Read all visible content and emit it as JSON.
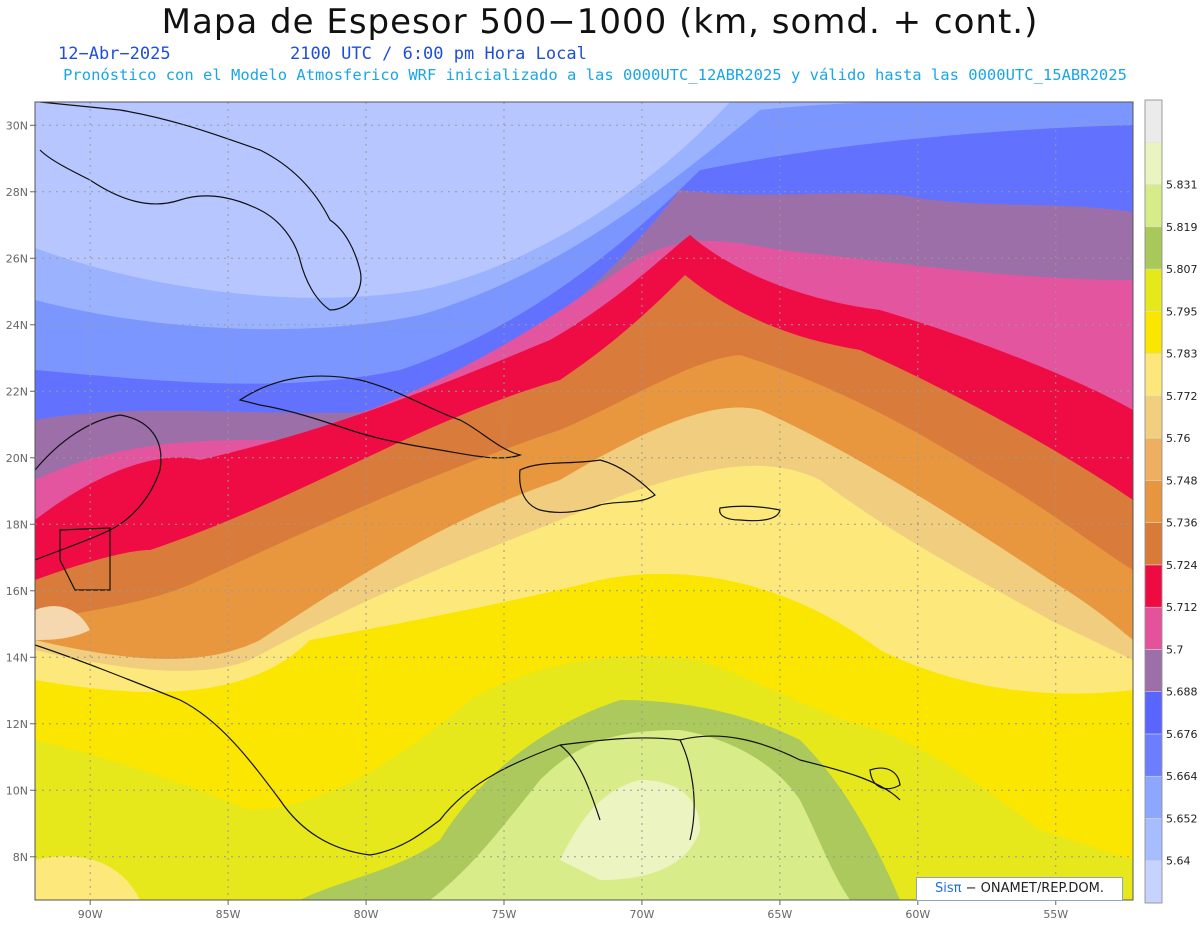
{
  "header": {
    "title": "Mapa de Espesor 500−1000 (km, somd. + cont.)",
    "date": "12−Abr−2025",
    "time": "2100 UTC / 6:00 pm Hora Local",
    "description": "Pronóstico con el Modelo Atmosferico WRF inicializado a las 0000UTC_12ABR2025 y válido hasta las  0000UTC_15ABR2025"
  },
  "credit": {
    "logo": "Sisπ",
    "text": " − ONAMET/REP.DOM."
  },
  "map": {
    "lon_range": [
      -92,
      -52.2
    ],
    "lat_range": [
      6.7,
      30.7
    ],
    "lon_ticks": [
      {
        "value": -90,
        "label": "90W"
      },
      {
        "value": -85,
        "label": "85W"
      },
      {
        "value": -80,
        "label": "80W"
      },
      {
        "value": -75,
        "label": "75W"
      },
      {
        "value": -70,
        "label": "70W"
      },
      {
        "value": -65,
        "label": "65W"
      },
      {
        "value": -60,
        "label": "60W"
      },
      {
        "value": -55,
        "label": "55W"
      }
    ],
    "lat_ticks": [
      {
        "value": 8,
        "label": "8N"
      },
      {
        "value": 10,
        "label": "10N"
      },
      {
        "value": 12,
        "label": "12N"
      },
      {
        "value": 14,
        "label": "14N"
      },
      {
        "value": 16,
        "label": "16N"
      },
      {
        "value": 18,
        "label": "18N"
      },
      {
        "value": 20,
        "label": "20N"
      },
      {
        "value": 22,
        "label": "22N"
      },
      {
        "value": 24,
        "label": "24N"
      },
      {
        "value": 26,
        "label": "26N"
      },
      {
        "value": 28,
        "label": "28N"
      },
      {
        "value": 30,
        "label": "30N"
      }
    ]
  },
  "colorbar": {
    "levels": [
      "5.64",
      "5.652",
      "5.664",
      "5.676",
      "5.688",
      "5.7",
      "5.712",
      "5.724",
      "5.736",
      "5.748",
      "5.76",
      "5.772",
      "5.783",
      "5.795",
      "5.807",
      "5.819",
      "5.831"
    ],
    "colors": [
      "#c7d3ff",
      "#a6bdff",
      "#8da6ff",
      "#6d7dff",
      "#5a64ff",
      "#9c6fa8",
      "#e4529c",
      "#ee0b42",
      "#d97a38",
      "#e89540",
      "#eeb060",
      "#f2cf7f",
      "#fde77a",
      "#fae600",
      "#e5e81a",
      "#a9c85a",
      "#d6ec88",
      "#eaf4c0",
      "#ebebeb"
    ]
  }
}
